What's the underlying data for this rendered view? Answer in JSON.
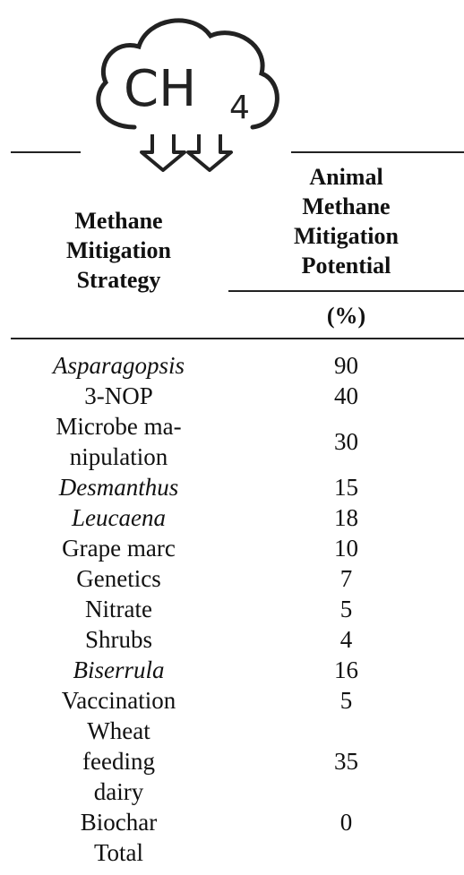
{
  "icon": {
    "text": "CH",
    "subscript": "4"
  },
  "table": {
    "header": {
      "strategy": "Methane\nMitigation\nStrategy",
      "potential": "Animal\nMethane\nMitigation\nPotential",
      "unit": "(%)"
    },
    "rows": [
      {
        "strategy": "Asparagopsis",
        "italic": true,
        "value": "90"
      },
      {
        "strategy": "3-NOP",
        "value": "40"
      },
      {
        "strategy": "Microbe ma-\nnipulation",
        "value": "30"
      },
      {
        "strategy": "Desmanthus",
        "italic": true,
        "value": "15"
      },
      {
        "strategy": "Leucaena",
        "italic": true,
        "value": "18"
      },
      {
        "strategy": "Grape marc",
        "value": "10"
      },
      {
        "strategy": "Genetics",
        "value": "7"
      },
      {
        "strategy": "Nitrate",
        "value": "5"
      },
      {
        "strategy": "Shrubs",
        "value": "4"
      },
      {
        "strategy": "Biserrula",
        "italic": true,
        "value": "16"
      },
      {
        "strategy": "Vaccination",
        "value": "5"
      },
      {
        "strategy": "Wheat\nfeeding\ndairy",
        "value": "35"
      },
      {
        "strategy": "Biochar",
        "value": "0"
      },
      {
        "strategy": "Total"
      }
    ]
  }
}
